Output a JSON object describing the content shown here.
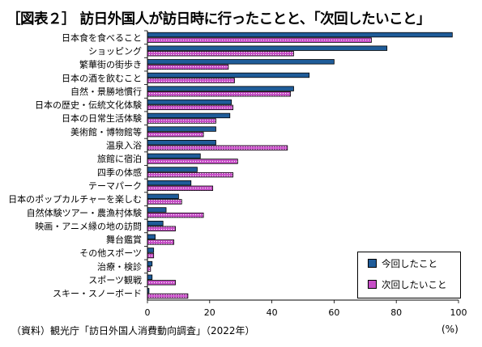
{
  "title": "［図表２］ 訪日外国人が訪日時に行ったことと、「次回したいこと」",
  "source": "（資料）観光庁「訪日外国人消費動向調査」（2022年）",
  "unit": "(%)",
  "legend": {
    "now": "今回したこと",
    "next": "次回したいこと"
  },
  "colors": {
    "now": "#1f5c99",
    "next": "#c64ec6"
  },
  "chart_data": {
    "type": "bar",
    "orientation": "horizontal",
    "categories": [
      "日本食を食べること",
      "ショッピング",
      "繁華街の街歩き",
      "日本の酒を飲むこと",
      "自然・景勝地慣行",
      "日本の歴史・伝統文化体験",
      "日本の日常生活体験",
      "美術館・博物館等",
      "温泉入浴",
      "旅館に宿泊",
      "四季の体感",
      "テーマパーク",
      "日本のポップカルチャーを楽しむ",
      "自然体験ツアー・農漁村体験",
      "映画・アニメ縁の地の訪問",
      "舞台鑑賞",
      "その他スポーツ",
      "治療・検診",
      "スポーツ観戦",
      "スキー・スノーボード"
    ],
    "series": [
      {
        "name": "今回したこと",
        "values": [
          98,
          77,
          60,
          52,
          47,
          27,
          26.5,
          22,
          22,
          17,
          16,
          14,
          10,
          6,
          5,
          2.5,
          2,
          1.5,
          1.5,
          0.5
        ]
      },
      {
        "name": "次回したいこと",
        "values": [
          72,
          47,
          26,
          28,
          46,
          27.5,
          22,
          18,
          45,
          29,
          27.5,
          21,
          11,
          18,
          9,
          8.5,
          2,
          1,
          9,
          13
        ]
      }
    ],
    "xlim": [
      0,
      100
    ],
    "xticks": [
      0,
      20,
      40,
      60,
      80,
      100
    ],
    "grid": false,
    "legend_position": "bottom-right"
  }
}
